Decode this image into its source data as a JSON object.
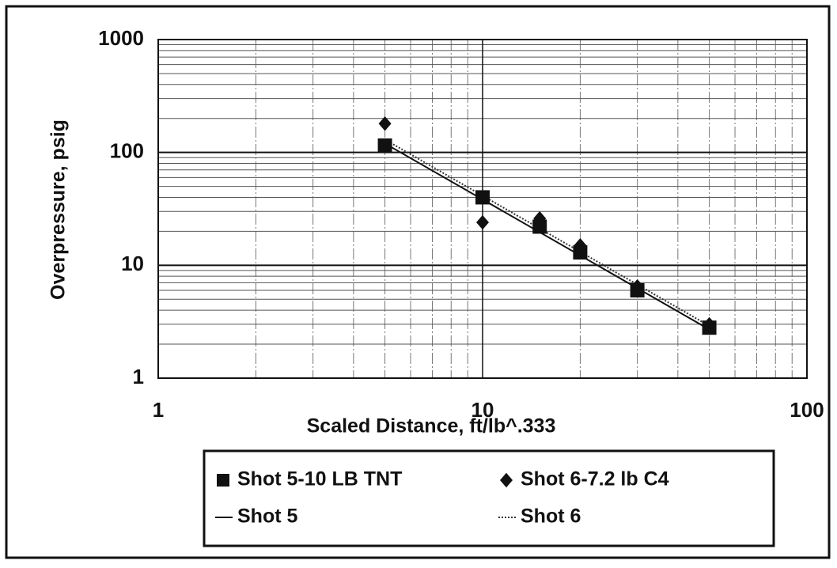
{
  "chart_data": {
    "type": "scatter",
    "x_label": "Scaled Distance, ft/lb^.333",
    "y_label": "Overpressure, psig",
    "xscale": "log",
    "yscale": "log",
    "xlim": [
      1,
      100
    ],
    "ylim": [
      1,
      1000
    ],
    "xticks": [
      1,
      10,
      100
    ],
    "yticks": [
      1,
      10,
      100,
      1000
    ],
    "grid": true,
    "minor_grid": true,
    "series": [
      {
        "name": "Shot 5-10 LB TNT",
        "type": "scatter",
        "marker": "square",
        "color": "#111111",
        "x": [
          5,
          10,
          15,
          20,
          30,
          50
        ],
        "values": [
          115,
          40,
          22,
          13,
          6,
          2.8
        ]
      },
      {
        "name": "Shot 6-7.2 lb C4",
        "type": "scatter",
        "marker": "diamond",
        "color": "#111111",
        "x": [
          5,
          10,
          15,
          20,
          30,
          50
        ],
        "values": [
          180,
          24,
          26,
          15,
          6.5,
          3
        ]
      },
      {
        "name": "Shot 5",
        "type": "line",
        "dash": "solid",
        "color": "#111111",
        "x": [
          5,
          50
        ],
        "values": [
          120,
          2.7
        ]
      },
      {
        "name": "Shot 6",
        "type": "line",
        "dash": "dotted",
        "color": "#333333",
        "x": [
          5,
          50
        ],
        "values": [
          130,
          2.9
        ]
      }
    ]
  }
}
